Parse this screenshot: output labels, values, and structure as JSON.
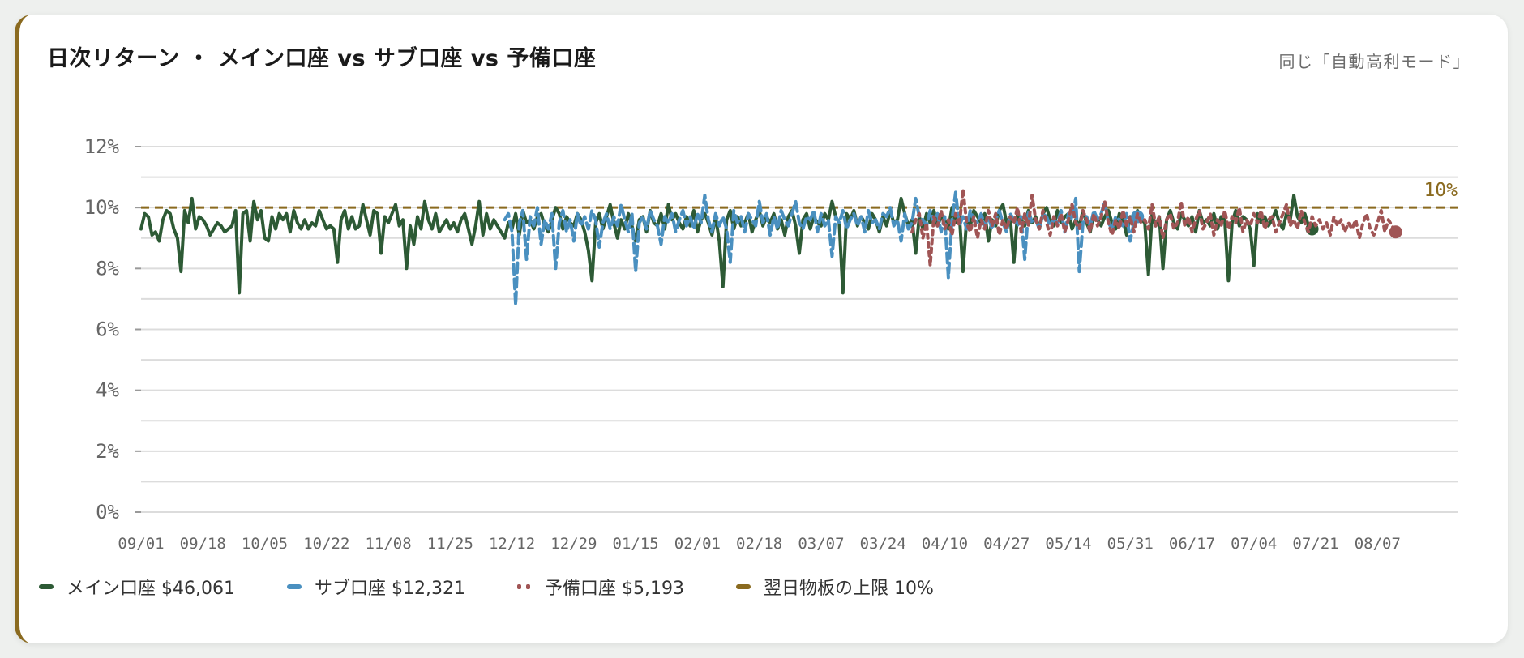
{
  "title": "日次リターン ・ メイン口座 vs サブ口座 vs 予備口座",
  "subtitle": "同じ「自動高利モード」",
  "colors": {
    "main": "#2d5a35",
    "sub": "#4a90c0",
    "reserve": "#a05555",
    "cap": "#8a6a1f",
    "grid": "#dcdcdc"
  },
  "chart_data": {
    "type": "line",
    "ylim": [
      0,
      12
    ],
    "yticks": [
      "0%",
      "2%",
      "4%",
      "6%",
      "8%",
      "10%",
      "12%"
    ],
    "xticks": [
      "09/01",
      "09/18",
      "10/05",
      "10/22",
      "11/08",
      "11/25",
      "12/12",
      "12/29",
      "01/15",
      "02/01",
      "02/18",
      "03/07",
      "03/24",
      "04/10",
      "04/27",
      "05/14",
      "05/31",
      "06/17",
      "07/04",
      "07/21",
      "08/07"
    ],
    "x_start": "09/01",
    "grid": true,
    "legend_position": "bottom-left",
    "cap": {
      "value": 10,
      "label": "10%"
    },
    "series": [
      {
        "name": "メイン口座 $46,061",
        "style": "solid",
        "color": "#2d5a35",
        "start_day": 0,
        "values": [
          9.3,
          9.8,
          9.7,
          9.1,
          9.2,
          8.9,
          9.6,
          9.9,
          9.8,
          9.3,
          9.0,
          7.9,
          9.9,
          9.5,
          10.3,
          9.3,
          9.7,
          9.6,
          9.4,
          9.1,
          9.3,
          9.5,
          9.4,
          9.2,
          9.3,
          9.4,
          9.9,
          7.2,
          9.8,
          9.9,
          8.9,
          10.2,
          9.6,
          9.9,
          9.0,
          8.9,
          9.7,
          9.3,
          9.8,
          9.6,
          9.8,
          9.2,
          9.9,
          9.5,
          9.3,
          9.6,
          9.3,
          9.5,
          9.4,
          9.9,
          9.6,
          9.3,
          9.4,
          9.3,
          8.2,
          9.6,
          9.9,
          9.3,
          9.7,
          9.3,
          9.4,
          10.1,
          9.6,
          9.1,
          9.9,
          9.8,
          8.5,
          9.7,
          9.5,
          9.8,
          10.1,
          9.4,
          9.6,
          8.0,
          9.4,
          8.8,
          9.7,
          9.3,
          10.2,
          9.6,
          9.3,
          9.8,
          9.2,
          9.4,
          9.6,
          9.3,
          9.5,
          9.2,
          9.6,
          9.8,
          9.3,
          8.8,
          9.4,
          10.2,
          9.1,
          9.8,
          9.3,
          9.6,
          9.4,
          9.2,
          9.0,
          9.5,
          9.3,
          9.8,
          9.1,
          9.9,
          9.5,
          9.6,
          9.3,
          9.7,
          9.8,
          9.4,
          9.2,
          9.6,
          10.0,
          9.8,
          9.3,
          9.7,
          9.5,
          9.4,
          9.8,
          9.6,
          9.2,
          8.6,
          7.6,
          9.5,
          9.8,
          9.3,
          9.7,
          10.1,
          9.5,
          9.0,
          9.6,
          9.3,
          9.8,
          9.4,
          8.9,
          9.6,
          9.7,
          9.2,
          9.9,
          9.5,
          9.4,
          9.8,
          9.3,
          10.1,
          9.6,
          9.8,
          9.5,
          9.3,
          9.7,
          9.4,
          9.9,
          9.2,
          9.6,
          9.8,
          9.5,
          9.1,
          9.7,
          8.9,
          7.4,
          9.6,
          9.9,
          9.3,
          9.7,
          9.4,
          9.5,
          9.8,
          9.2,
          9.6,
          9.9,
          9.4,
          9.7,
          9.5,
          9.8,
          9.3,
          9.6,
          9.1,
          9.7,
          9.9,
          9.4,
          8.5,
          9.6,
          9.8,
          9.3,
          9.7,
          9.5,
          9.4,
          9.8,
          9.6,
          10.2,
          9.7,
          9.5,
          7.2,
          9.8,
          9.6,
          9.9,
          9.4,
          9.7,
          9.5,
          9.3,
          9.8,
          9.6,
          9.2,
          9.7,
          9.4,
          9.9,
          9.5,
          9.6,
          10.3,
          9.8,
          9.4,
          9.6,
          8.5,
          9.7,
          9.3,
          9.8,
          9.5,
          9.9,
          9.4,
          9.7,
          9.6,
          9.3,
          10.0,
          9.5,
          9.8,
          7.9,
          9.6,
          9.4,
          9.9,
          9.7,
          9.5,
          9.8,
          8.9,
          9.6,
          9.4,
          9.9,
          10.1,
          9.5,
          9.7,
          8.2,
          9.8,
          9.6,
          9.4,
          9.9,
          9.5,
          9.7,
          9.3,
          9.8,
          10.0,
          9.6,
          9.4,
          9.9,
          9.5,
          9.7,
          9.8,
          9.3,
          9.6,
          9.4,
          9.9,
          9.5,
          9.2,
          9.8,
          9.6,
          9.4,
          9.7,
          9.9,
          9.5,
          9.3,
          9.8,
          9.6,
          9.1,
          9.7,
          9.4,
          9.9,
          9.6,
          9.5,
          7.8,
          9.8,
          9.4,
          9.7,
          8.0,
          9.6,
          9.9,
          9.5,
          9.3,
          9.8,
          9.6,
          9.4,
          9.7,
          9.2,
          9.9,
          9.5,
          9.6,
          9.4,
          9.8,
          9.3,
          9.7,
          9.6,
          7.6,
          9.5,
          9.9,
          9.4,
          9.7,
          9.6,
          9.3,
          8.1,
          9.8,
          9.5,
          9.7,
          9.4,
          9.6,
          9.9,
          9.5,
          9.3,
          9.8,
          9.6,
          10.4,
          9.7,
          9.5,
          9.8,
          9.4,
          9.3
        ]
      },
      {
        "name": "サブ口座 $12,321",
        "style": "dashed",
        "color": "#4a90c0",
        "start_day": 100,
        "values": [
          9.6,
          9.8,
          9.2,
          6.8,
          9.5,
          9.9,
          8.3,
          9.7,
          9.4,
          10.0,
          8.8,
          9.6,
          9.3,
          9.8,
          8.0,
          9.5,
          9.9,
          9.2,
          9.6,
          8.9,
          9.8,
          9.4,
          9.7,
          9.3,
          9.9,
          9.6,
          8.7,
          9.5,
          9.8,
          9.3,
          9.7,
          9.4,
          10.1,
          9.6,
          9.2,
          9.8,
          7.9,
          9.5,
          9.7,
          9.3,
          9.9,
          9.6,
          9.4,
          8.8,
          9.7,
          9.5,
          9.8,
          9.2,
          9.6,
          9.9,
          9.4,
          9.7,
          9.3,
          9.8,
          9.5,
          10.4,
          9.6,
          9.2,
          9.8,
          9.4,
          9.7,
          9.3,
          8.2,
          9.9,
          9.5,
          9.7,
          9.2,
          9.8,
          9.6,
          9.4,
          10.2,
          9.5,
          9.8,
          9.1,
          9.7,
          9.3,
          9.9,
          9.6,
          9.4,
          9.8,
          10.2,
          9.5,
          9.3,
          9.7,
          9.6,
          9.9,
          9.2,
          9.8,
          9.4,
          9.6,
          8.4,
          9.7,
          9.5,
          9.9,
          9.3,
          9.6,
          9.8,
          9.4,
          9.7,
          9.2,
          9.9,
          9.5,
          9.6,
          9.3,
          9.8,
          9.7,
          10.0,
          9.4,
          9.6,
          8.9,
          9.8,
          9.3,
          9.5,
          10.3,
          9.7,
          9.6,
          9.4,
          9.9,
          9.5,
          9.8,
          9.2,
          9.7,
          7.7,
          9.6,
          10.5,
          9.4,
          9.7,
          9.3,
          9.9,
          9.6,
          9.5,
          9.8,
          9.4,
          9.7,
          9.3,
          9.6,
          9.9,
          9.5,
          9.2,
          9.8,
          9.6,
          9.4,
          9.7,
          8.3,
          9.9,
          9.5,
          9.6,
          9.3,
          9.8,
          9.7,
          9.4,
          9.6,
          9.5,
          9.9,
          9.2,
          9.8,
          9.6,
          10.3,
          7.9,
          9.5,
          9.7,
          9.4,
          9.9,
          9.6,
          9.8,
          10.2,
          9.5,
          9.3,
          9.7,
          9.6,
          9.4,
          9.8,
          8.9,
          9.5,
          9.7
        ]
      },
      {
        "name": "予備口座 $5,193",
        "style": "dotted",
        "color": "#a05555",
        "start_day": 212,
        "values": [
          9.2,
          9.6,
          9.8,
          9.0,
          9.5,
          8.1,
          9.7,
          9.4,
          9.9,
          9.3,
          9.6,
          9.1,
          9.8,
          9.4,
          10.6,
          9.5,
          9.2,
          9.7,
          9.0,
          9.6,
          9.3,
          9.9,
          9.4,
          9.8,
          9.1,
          9.6,
          9.3,
          9.7,
          9.5,
          10.0,
          9.2,
          9.8,
          9.4,
          10.4,
          9.6,
          9.3,
          9.9,
          9.5,
          9.1,
          9.7,
          9.4,
          9.8,
          9.2,
          9.6,
          10.1,
          9.5,
          9.3,
          9.9,
          9.6,
          9.2,
          9.8,
          9.4,
          9.7,
          10.2,
          9.5,
          9.1,
          9.6,
          9.3,
          9.9,
          9.4,
          9.7,
          9.2,
          9.8,
          9.5,
          9.6,
          9.3,
          10.1,
          9.4,
          9.7,
          9.0,
          9.6,
          9.8,
          9.3,
          9.5,
          10.2,
          9.4,
          9.7,
          9.2,
          9.6,
          9.9,
          9.3,
          9.5,
          9.8,
          9.1,
          9.6,
          9.4,
          9.9,
          9.3,
          9.7,
          9.5,
          10.0,
          9.2,
          9.6,
          9.4,
          9.8,
          9.5,
          9.9,
          9.3,
          9.6,
          9.7,
          9.2,
          9.5,
          9.8,
          10.1,
          9.4,
          9.6,
          9.3,
          9.9,
          9.5,
          9.2,
          9.7,
          9.4,
          9.6,
          9.3,
          9.5,
          9.1,
          9.7,
          9.4,
          9.6,
          9.2,
          9.5,
          9.3,
          9.6,
          9.0,
          9.5,
          9.8,
          9.3,
          9.1,
          9.5,
          9.9,
          9.2,
          9.6,
          9.4,
          9.2
        ]
      }
    ]
  },
  "legend": [
    {
      "label": "メイン口座 $46,061",
      "style": "solid",
      "color": "#2d5a35"
    },
    {
      "label": "サブ口座 $12,321",
      "style": "dashed",
      "color": "#4a90c0"
    },
    {
      "label": "予備口座 $5,193",
      "style": "dotted",
      "color": "#a05555"
    },
    {
      "label": "翌日物板の上限 10%",
      "style": "solid",
      "color": "#8a6a1f"
    }
  ]
}
